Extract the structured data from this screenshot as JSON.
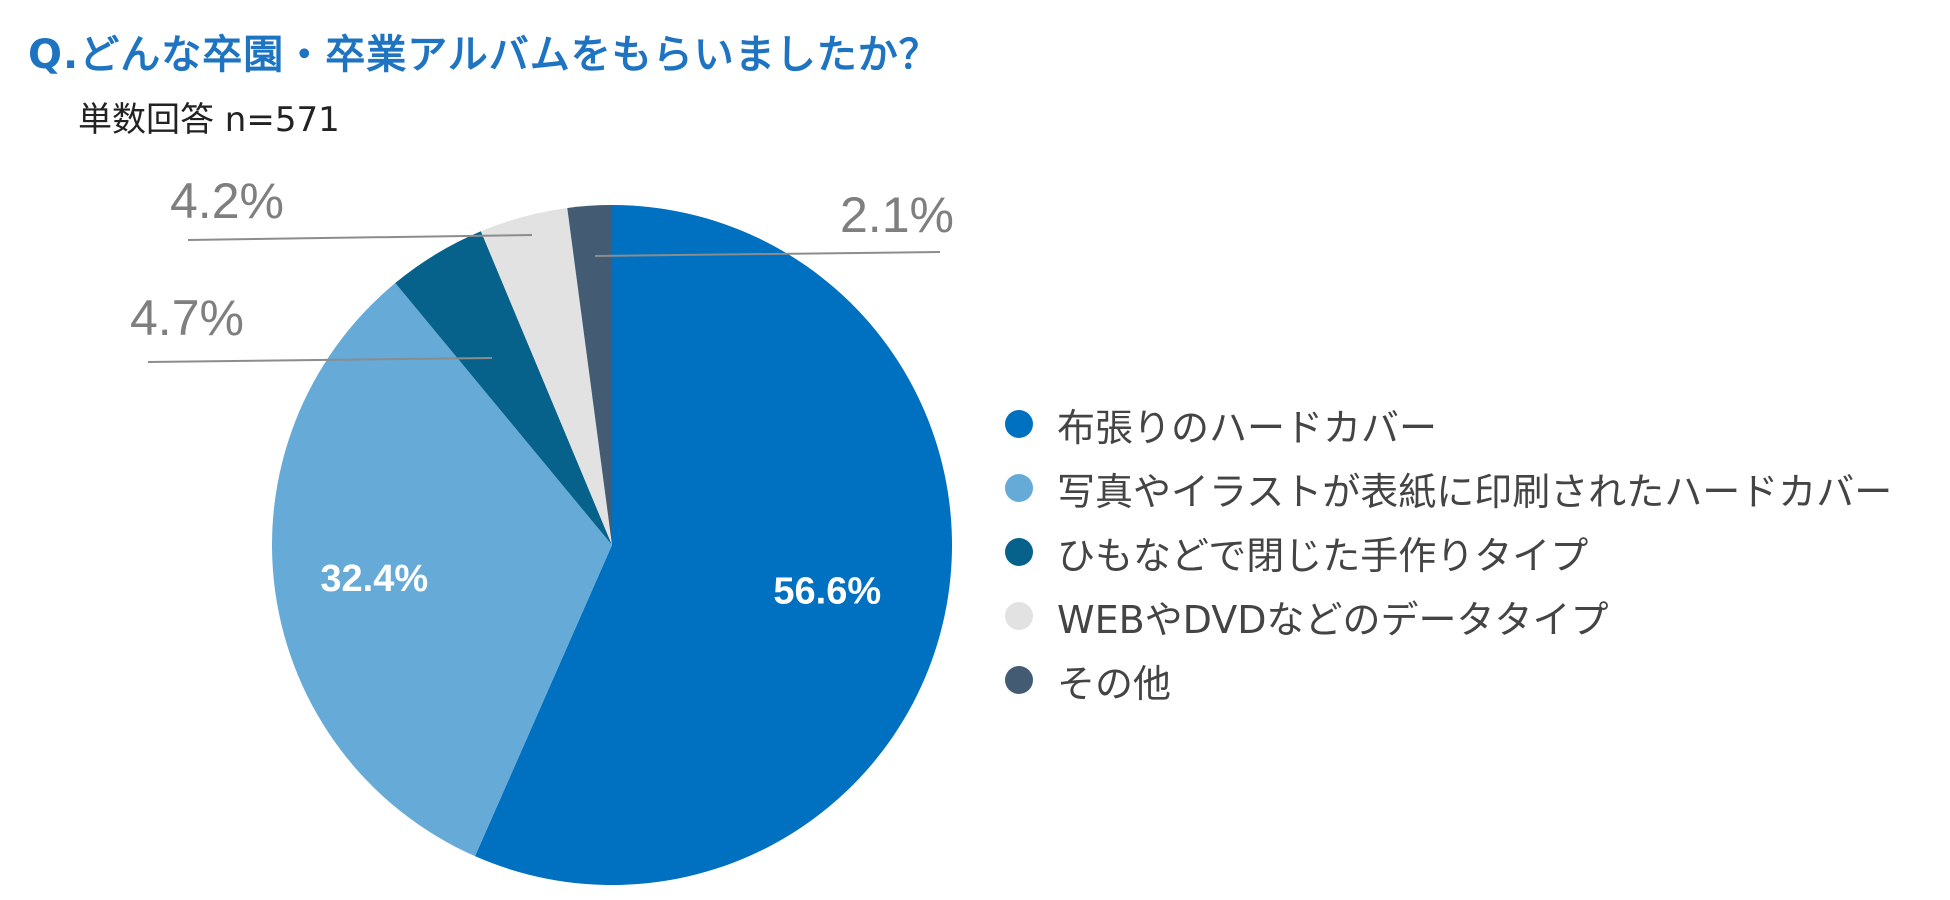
{
  "title": "Q.どんな卒園・卒業アルバムをもらいましたか？",
  "subtitle": "単数回答 n=571",
  "chart_data": {
    "type": "pie",
    "categories": [
      "布張りのハードカバー",
      "写真やイラストが表紙に印刷されたハードカバー",
      "ひもなどで閉じた手作りタイプ",
      "WEBやDVDなどのデータタイプ",
      "その他"
    ],
    "values": [
      56.6,
      32.4,
      4.7,
      4.2,
      2.1
    ],
    "labels": [
      "56.6%",
      "32.4%",
      "4.7%",
      "4.2%",
      "2.1%"
    ],
    "colors": [
      "#0070c0",
      "#66aad8",
      "#06628a",
      "#e2e2e2",
      "#435b73"
    ],
    "start": "12 o'clock",
    "direction": "clockwise",
    "legend": "right"
  }
}
